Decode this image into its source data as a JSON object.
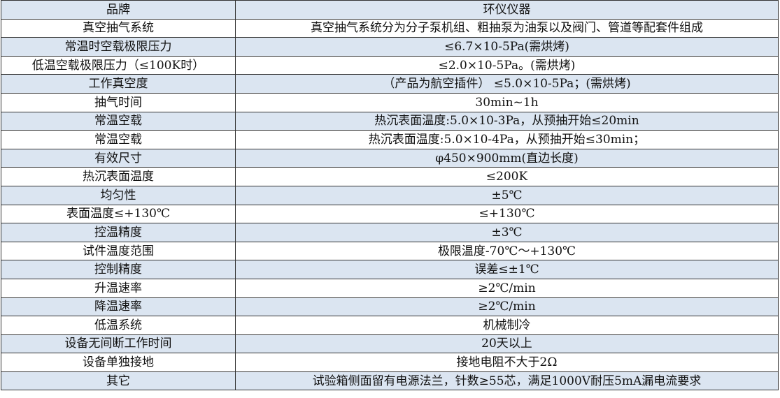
{
  "colors": {
    "band": "#dbe5f1",
    "border": "#333333"
  },
  "rows": [
    {
      "k": "品牌",
      "v": "环仪仪器"
    },
    {
      "k": "真空抽气系统",
      "v": "真空抽气系统分为分子泵机组、粗抽泵为油泵以及阀门、管道等配套件组成"
    },
    {
      "k": "常温时空载极限压力",
      "v": "≤6.7×10-5Pa(需烘烤)"
    },
    {
      "k": "低温空载极限压力（≤100K时）",
      "v": "≤2.0×10-5Pa。(需烘烤)"
    },
    {
      "k": "工作真空度",
      "v": "（产品为航空插件） ≤5.0×10-5Pa；(需烘烤)"
    },
    {
      "k": "抽气时间",
      "v": "30min~1h"
    },
    {
      "k": "常温空载",
      "v": "热沉表面温度:5.0×10-3Pa，从预抽开始≤20min"
    },
    {
      "k": "常温空载",
      "v": "热沉表面温度:5.0×10-4Pa，从预抽开始≤30min；"
    },
    {
      "k": "有效尺寸",
      "v": "φ450×900mm(直边长度)"
    },
    {
      "k": "热沉表面温度",
      "v": "≤200K"
    },
    {
      "k": "均匀性",
      "v": "±5℃"
    },
    {
      "k": "表面温度≤+130℃",
      "v": "≤+130℃"
    },
    {
      "k": "控温精度",
      "v": "±3℃"
    },
    {
      "k": "试件温度范围",
      "v": "极限温度-70℃～+130℃"
    },
    {
      "k": "控制精度",
      "v": "误差≤±1℃"
    },
    {
      "k": "升温速率",
      "v": "≥2℃/min"
    },
    {
      "k": "降温速率",
      "v": "≥2℃/min"
    },
    {
      "k": "低温系统",
      "v": "机械制冷"
    },
    {
      "k": "设备无间断工作时间",
      "v": "20天以上"
    },
    {
      "k": "设备单独接地",
      "v": "接地电阻不大于2Ω"
    },
    {
      "k": "其它",
      "v": "试验箱侧面留有电源法兰，针数≥55芯，满足1000V耐压5mA漏电流要求"
    }
  ]
}
